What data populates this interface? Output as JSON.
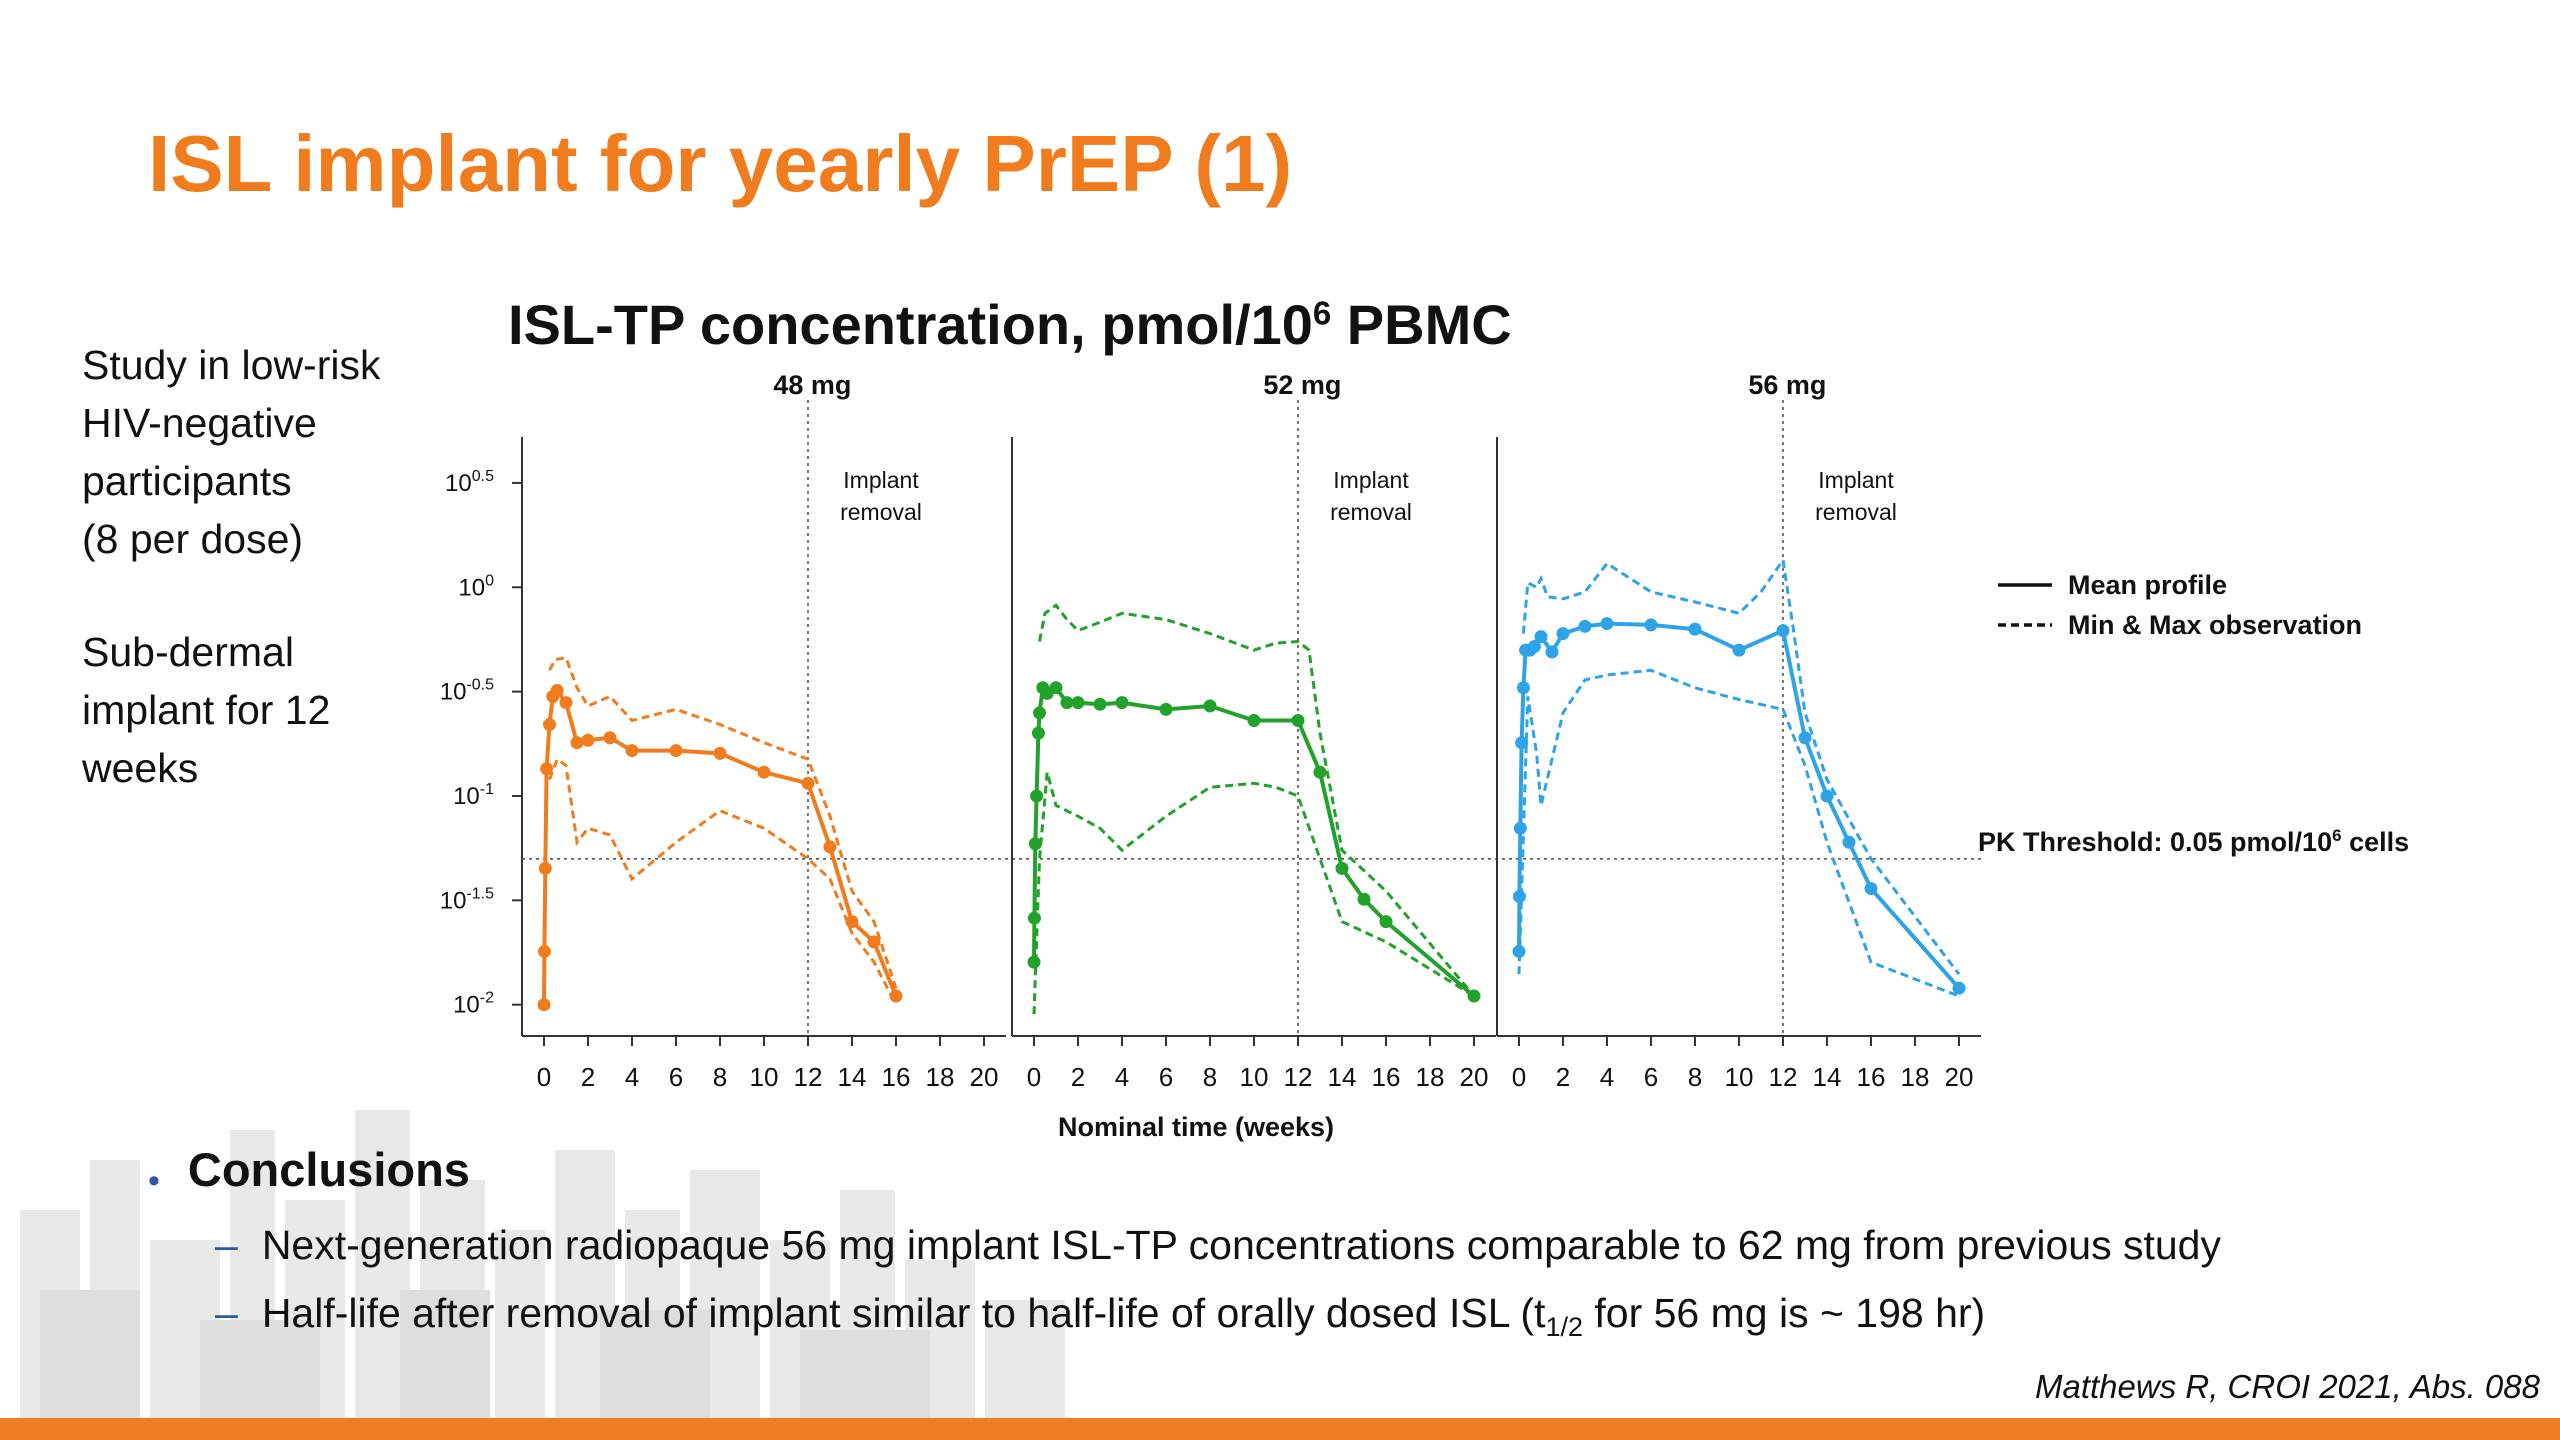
{
  "slide": {
    "title": "ISL implant for yearly PrEP (1)",
    "side_text_1": [
      "Study in low-risk",
      "HIV-negative",
      "participants",
      "(8 per dose)"
    ],
    "side_text_2": [
      "Sub-dermal",
      "implant for 12",
      "weeks"
    ],
    "chart_title_main": "ISL-TP concentration, pmol/10",
    "chart_title_sup": "6",
    "chart_title_tail": " PBMC",
    "conclusions_heading": "Conclusions",
    "conclusion_1": "Next-generation radiopaque 56 mg implant ISL-TP concentrations comparable to 62 mg from previous study",
    "conclusion_2_pre": "Half-life after removal of implant similar to half-life of orally dosed ISL (t",
    "conclusion_2_sub": "1/2",
    "conclusion_2_post": " for 56 mg is ~ 198 hr)",
    "dash": "–",
    "bullet": "•",
    "citation": "Matthews R, CROI 2021, Abs. 088",
    "colors": {
      "title": "#f07c1e",
      "accent_bar": "#ef7d22",
      "bullet": "#2c5aa0"
    }
  },
  "chart_data": {
    "type": "line",
    "y_scale": "log10",
    "ylim_exponent": [
      -2.15,
      0.72
    ],
    "ytick_exponents": [
      "0.5",
      "0",
      "-0.5",
      "-1",
      "-1.5",
      "-2"
    ],
    "ytick_base": "10",
    "xlim": [
      -1,
      21
    ],
    "xticks": [
      0,
      2,
      4,
      6,
      8,
      10,
      12,
      14,
      16,
      18,
      20
    ],
    "xlabel": "Nominal time (weeks)",
    "implant_removal_week": 12,
    "implant_removal_label": [
      "Implant",
      "removal"
    ],
    "threshold": {
      "value": 0.05,
      "label_pre": "PK Threshold: 0.05 pmol/10",
      "label_sup": "6",
      "label_post": " cells"
    },
    "legend": [
      {
        "label": "Mean profile",
        "style": "solid"
      },
      {
        "label": "Min & Max observation",
        "style": "dashed"
      }
    ],
    "panels": [
      {
        "title": "48 mg",
        "color": "#f07c1e",
        "mean": {
          "x": [
            0,
            0.02,
            0.06,
            0.12,
            0.25,
            0.4,
            0.6,
            1,
            1.5,
            2,
            3,
            4,
            6,
            8,
            10,
            12,
            13,
            14,
            15,
            16
          ],
          "y": [
            0.01,
            0.018,
            0.045,
            0.135,
            0.22,
            0.3,
            0.32,
            0.28,
            0.18,
            0.185,
            0.19,
            0.165,
            0.165,
            0.16,
            0.13,
            0.115,
            0.057,
            0.025,
            0.02,
            0.011
          ]
        },
        "max": {
          "x": [
            0.25,
            0.5,
            1,
            1.5,
            2,
            3,
            4,
            6,
            8,
            10,
            12,
            13,
            14,
            15,
            16
          ],
          "y": [
            0.4,
            0.45,
            0.46,
            0.33,
            0.27,
            0.3,
            0.23,
            0.26,
            0.22,
            0.18,
            0.15,
            0.08,
            0.035,
            0.025,
            0.012
          ]
        },
        "min": {
          "x": [
            0.25,
            0.6,
            1,
            1.5,
            2,
            3,
            4,
            6,
            8,
            10,
            12,
            13,
            14,
            15,
            16
          ],
          "y": [
            0.12,
            0.15,
            0.14,
            0.06,
            0.07,
            0.065,
            0.04,
            0.06,
            0.085,
            0.07,
            0.05,
            0.04,
            0.022,
            0.016,
            0.01
          ]
        }
      },
      {
        "title": "52 mg",
        "color": "#22a12b",
        "mean": {
          "x": [
            0,
            0.02,
            0.06,
            0.12,
            0.2,
            0.25,
            0.4,
            0.6,
            1,
            1.5,
            2,
            3,
            4,
            6,
            8,
            10,
            12,
            13,
            14,
            15,
            16,
            20
          ],
          "y": [
            0.016,
            0.026,
            0.059,
            0.1,
            0.2,
            0.25,
            0.33,
            0.31,
            0.33,
            0.28,
            0.28,
            0.275,
            0.28,
            0.26,
            0.27,
            0.23,
            0.23,
            0.13,
            0.045,
            0.032,
            0.025,
            0.011
          ]
        },
        "max": {
          "x": [
            0.25,
            0.5,
            1,
            1.5,
            2,
            3,
            4,
            6,
            8,
            10,
            11,
            12,
            12.5,
            13,
            14,
            16,
            20
          ],
          "y": [
            0.55,
            0.75,
            0.82,
            0.7,
            0.62,
            0.68,
            0.75,
            0.7,
            0.6,
            0.5,
            0.54,
            0.55,
            0.5,
            0.2,
            0.055,
            0.035,
            0.011
          ]
        },
        "min": {
          "x": [
            0,
            0.25,
            0.6,
            1,
            2,
            3,
            4,
            6,
            8,
            10,
            11,
            12,
            13,
            14,
            16,
            20
          ],
          "y": [
            0.009,
            0.05,
            0.13,
            0.09,
            0.08,
            0.07,
            0.055,
            0.08,
            0.11,
            0.115,
            0.11,
            0.1,
            0.05,
            0.025,
            0.02,
            0.011
          ]
        }
      },
      {
        "title": "56 mg",
        "color": "#2ea3e8",
        "mean": {
          "x": [
            0,
            0.02,
            0.06,
            0.12,
            0.2,
            0.3,
            0.5,
            0.7,
            1,
            1.5,
            2,
            3,
            4,
            6,
            8,
            10,
            12,
            13,
            14,
            15,
            16,
            20
          ],
          "y": [
            0.018,
            0.033,
            0.07,
            0.18,
            0.33,
            0.5,
            0.5,
            0.52,
            0.58,
            0.49,
            0.6,
            0.65,
            0.67,
            0.66,
            0.63,
            0.5,
            0.62,
            0.19,
            0.1,
            0.06,
            0.036,
            0.012
          ]
        },
        "max": {
          "x": [
            0.2,
            0.4,
            0.8,
            1,
            1.3,
            2,
            3,
            4,
            6,
            8,
            10,
            11,
            12,
            12.5,
            13,
            14,
            16,
            20
          ],
          "y": [
            0.6,
            1.05,
            1.0,
            1.1,
            0.9,
            0.88,
            0.95,
            1.3,
            0.95,
            0.85,
            0.75,
            0.95,
            1.35,
            0.6,
            0.25,
            0.12,
            0.05,
            0.014
          ]
        },
        "min": {
          "x": [
            0,
            0.4,
            0.8,
            1,
            1.5,
            2,
            3,
            4,
            6,
            8,
            10,
            12,
            13,
            14,
            16,
            20
          ],
          "y": [
            0.014,
            0.3,
            0.16,
            0.09,
            0.15,
            0.25,
            0.36,
            0.38,
            0.4,
            0.33,
            0.29,
            0.26,
            0.14,
            0.06,
            0.016,
            0.011
          ]
        }
      }
    ]
  }
}
